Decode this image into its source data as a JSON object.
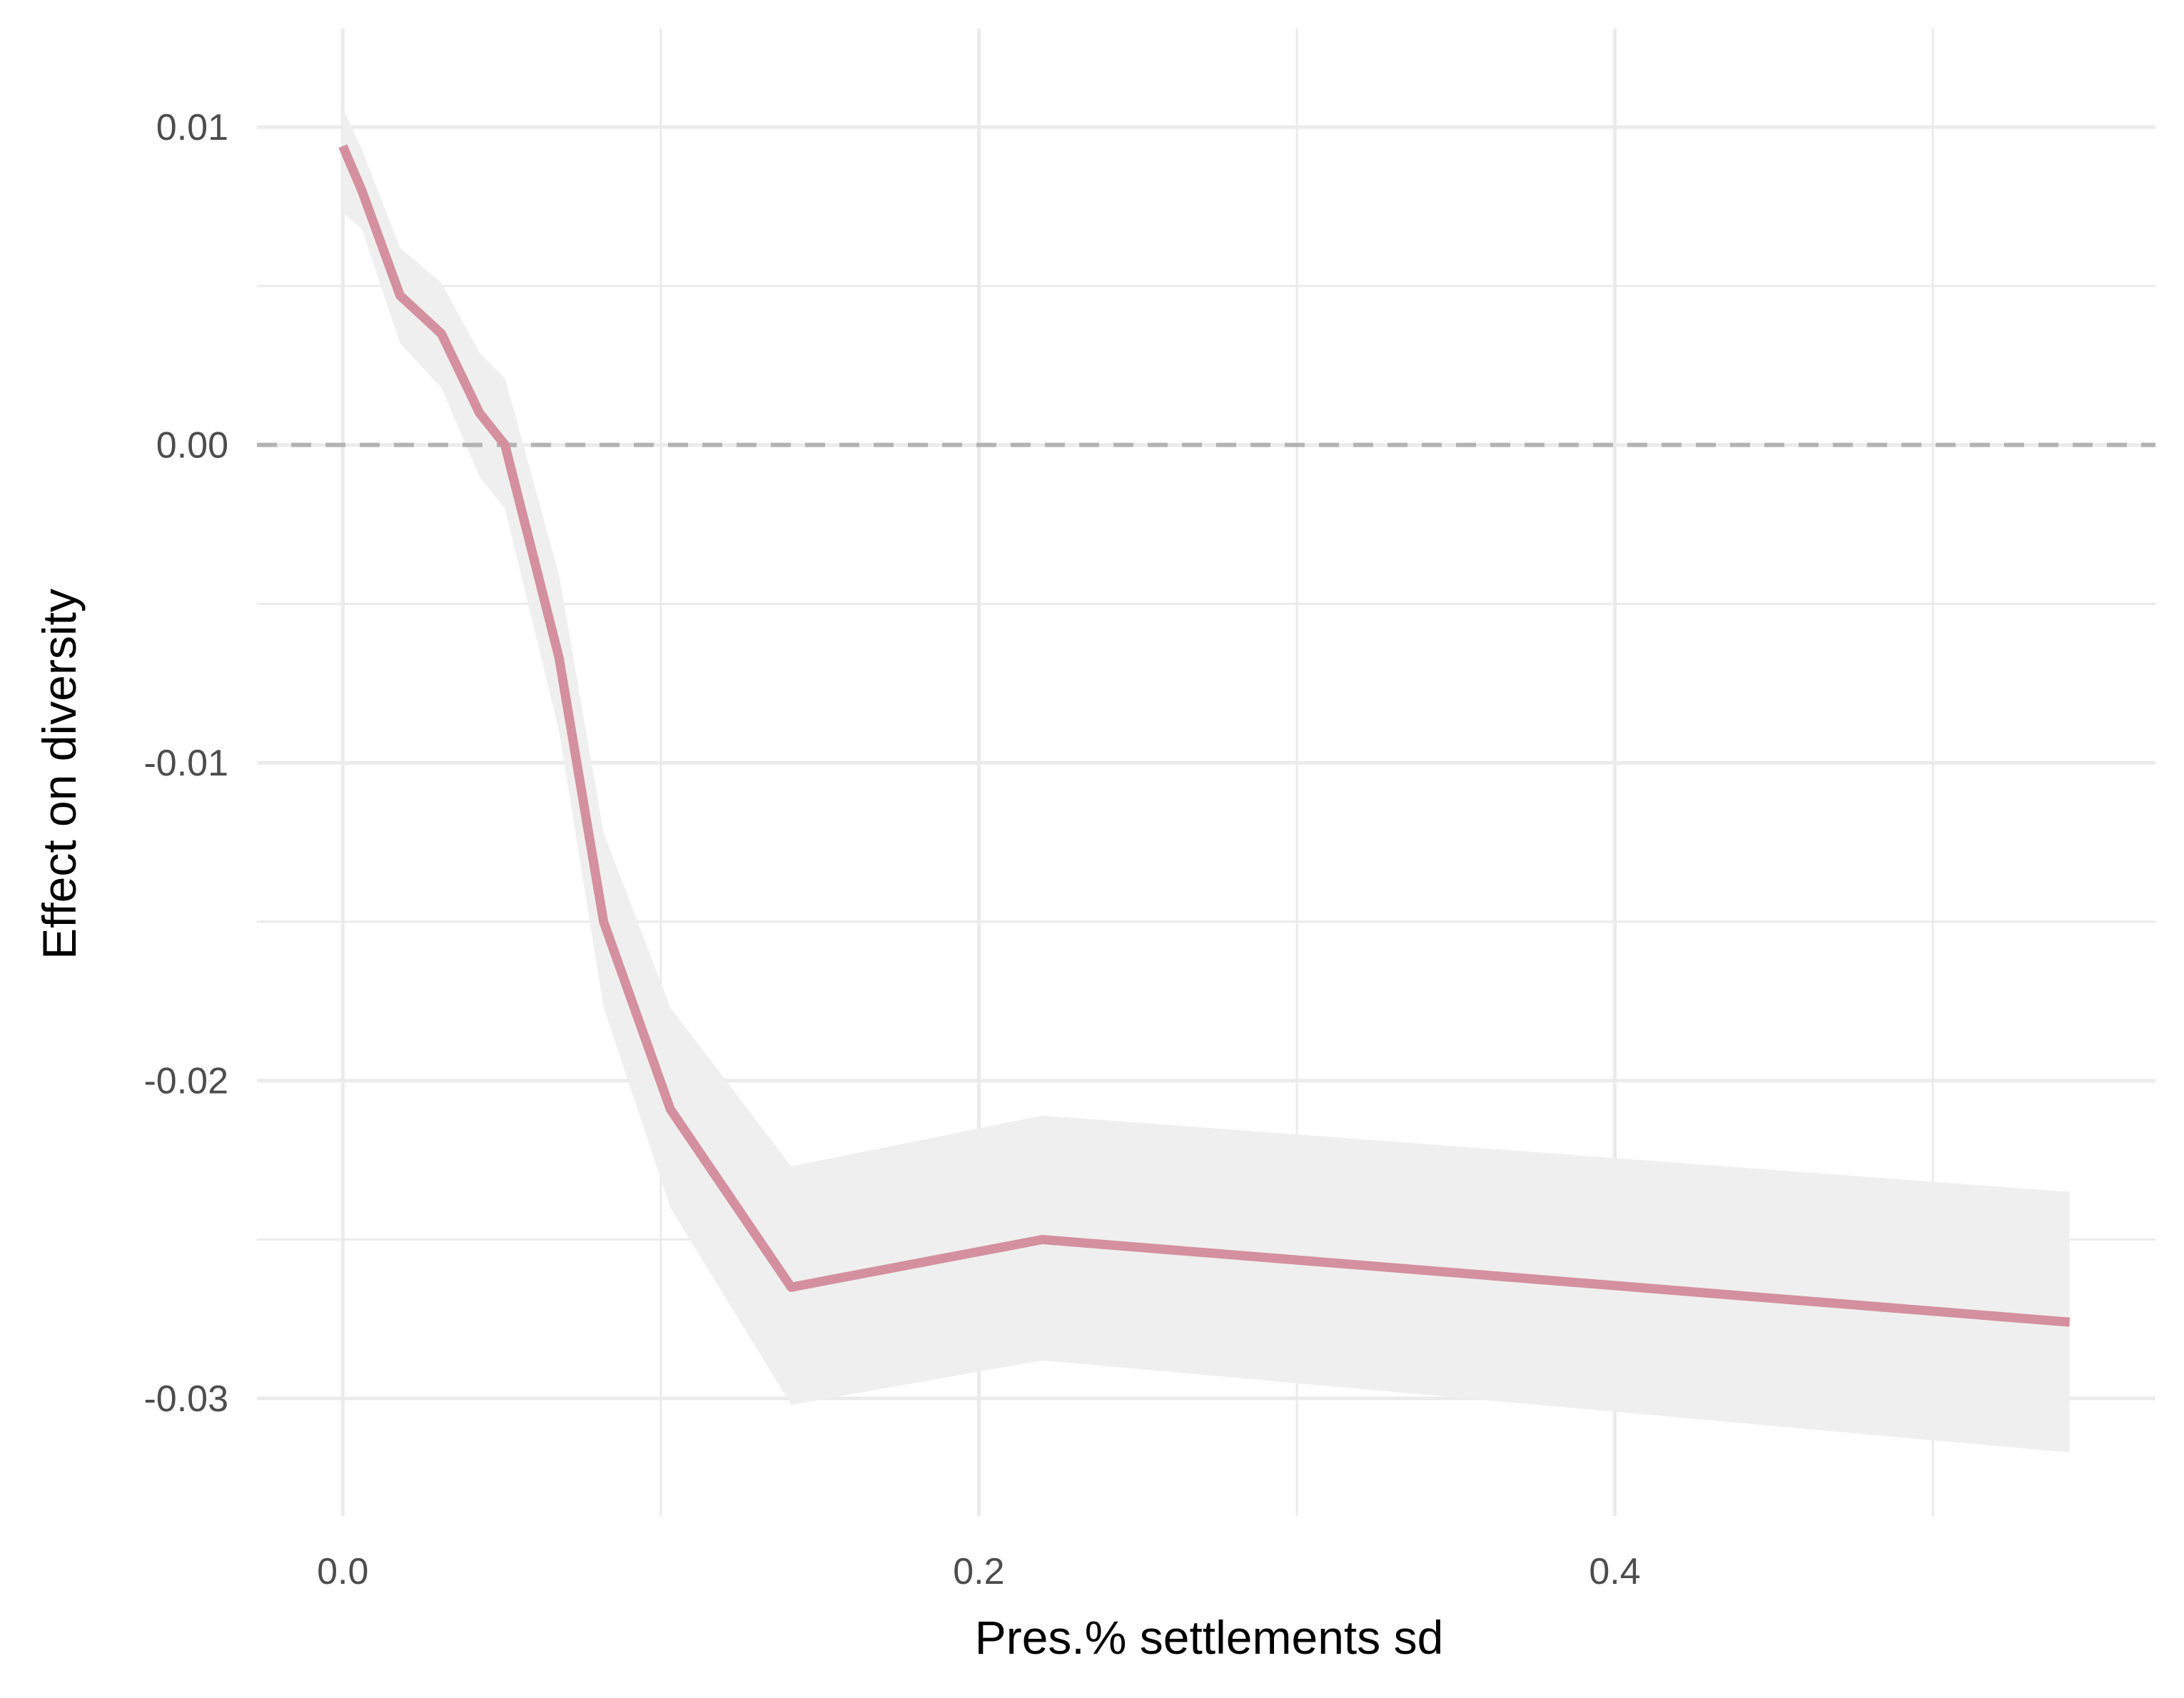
{
  "chart_data": {
    "type": "line",
    "xlabel": "Pres.% settlements sd",
    "ylabel": "Effect on diversity",
    "xlim": [
      -0.027,
      0.57
    ],
    "ylim": [
      -0.0337,
      0.0131
    ],
    "x_ticks": [
      0.0,
      0.2,
      0.4
    ],
    "x_tick_labels": [
      "0.0",
      "0.2",
      "0.4"
    ],
    "x_minor_ticks": [
      0.1,
      0.3,
      0.5
    ],
    "y_ticks": [
      0.01,
      0.0,
      -0.01,
      -0.02,
      -0.03
    ],
    "y_tick_labels": [
      "0.01",
      "0.00",
      "-0.01",
      "-0.02",
      "-0.03"
    ],
    "y_minor_ticks": [
      0.005,
      -0.005,
      -0.015,
      -0.025
    ],
    "reference_line": {
      "y": 0.0,
      "style": "dashed",
      "color": "#b3b3b3"
    },
    "grid": true,
    "series": [
      {
        "color": "#d4909e",
        "x": [
          0.0,
          0.006,
          0.018,
          0.031,
          0.043,
          0.051,
          0.068,
          0.082,
          0.103,
          0.141,
          0.22,
          0.543
        ],
        "y": [
          0.0094,
          0.008,
          0.0047,
          0.0035,
          0.001,
          0.0,
          -0.0067,
          -0.015,
          -0.0209,
          -0.0265,
          -0.025,
          -0.0276
        ],
        "lower": [
          0.0073,
          0.0068,
          0.0032,
          0.0018,
          -0.001,
          -0.002,
          -0.009,
          -0.0177,
          -0.024,
          -0.0302,
          -0.0288,
          -0.0317
        ],
        "upper": [
          0.0106,
          0.0093,
          0.0062,
          0.0051,
          0.0029,
          0.0021,
          -0.0041,
          -0.0122,
          -0.0177,
          -0.0227,
          -0.0211,
          -0.0235
        ]
      }
    ],
    "band_color": "#efefef"
  }
}
